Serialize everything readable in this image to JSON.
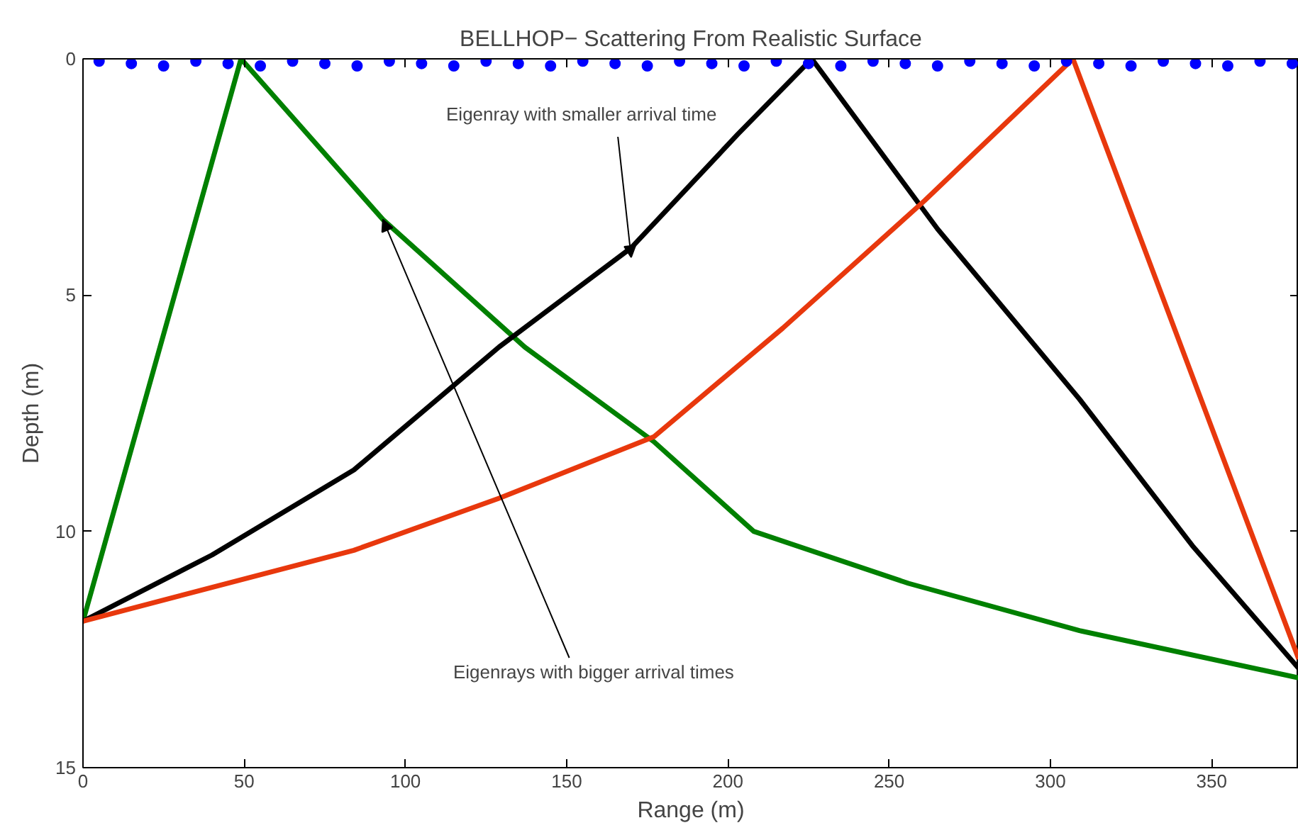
{
  "chart_data": {
    "type": "line",
    "title": "BELLHOP− Scattering From Realistic Surface",
    "xlabel": "Range (m)",
    "ylabel": "Depth (m)",
    "xlim": [
      0,
      377
    ],
    "ylim": [
      15,
      0
    ],
    "xticks": [
      0,
      50,
      100,
      150,
      200,
      250,
      300,
      350
    ],
    "yticks": [
      0,
      5,
      10,
      15
    ],
    "grid": false,
    "line_style": "solid",
    "series": [
      {
        "type": "scatter",
        "marker": "circle",
        "color": "#0000ff",
        "x": [
          5,
          15,
          25,
          35,
          45,
          55,
          65,
          75,
          85,
          95,
          105,
          115,
          125,
          135,
          145,
          155,
          165,
          175,
          185,
          195,
          205,
          215,
          225,
          235,
          245,
          255,
          265,
          275,
          285,
          295,
          305,
          315,
          325,
          335,
          345,
          355,
          365,
          375
        ],
        "values": [
          0.05,
          0.1,
          0.15,
          0.05,
          0.1,
          0.15,
          0.05,
          0.1,
          0.15,
          0.05,
          0.1,
          0.15,
          0.05,
          0.1,
          0.15,
          0.05,
          0.1,
          0.15,
          0.05,
          0.1,
          0.15,
          0.05,
          0.1,
          0.15,
          0.05,
          0.1,
          0.15,
          0.05,
          0.1,
          0.15,
          0.05,
          0.1,
          0.15,
          0.05,
          0.1,
          0.15,
          0.05,
          0.1
        ]
      },
      {
        "color": "#008000",
        "x": [
          0,
          49,
          93,
          137,
          177,
          208,
          256,
          309,
          377
        ],
        "values": [
          11.9,
          0,
          3.4,
          6.1,
          8.1,
          10.0,
          11.1,
          12.1,
          13.1
        ]
      },
      {
        "color": "#000000",
        "x": [
          0,
          40,
          84,
          129,
          170,
          203,
          226,
          265,
          309,
          344,
          377
        ],
        "values": [
          11.9,
          10.5,
          8.7,
          6.1,
          4.0,
          1.6,
          0,
          3.6,
          7.2,
          10.3,
          12.9
        ]
      },
      {
        "color": "#e8380d",
        "x": [
          0,
          84,
          129,
          177,
          217,
          261,
          307,
          377
        ],
        "values": [
          11.9,
          10.4,
          9.3,
          8.0,
          5.7,
          3.0,
          0,
          12.7
        ]
      }
    ],
    "annotations": [
      {
        "text": "Eigenray with smaller arrival time",
        "x": 170,
        "y": 4.2
      },
      {
        "text": "Eigenrays with bigger arrival times",
        "x": 93,
        "y": 3.4
      }
    ]
  }
}
